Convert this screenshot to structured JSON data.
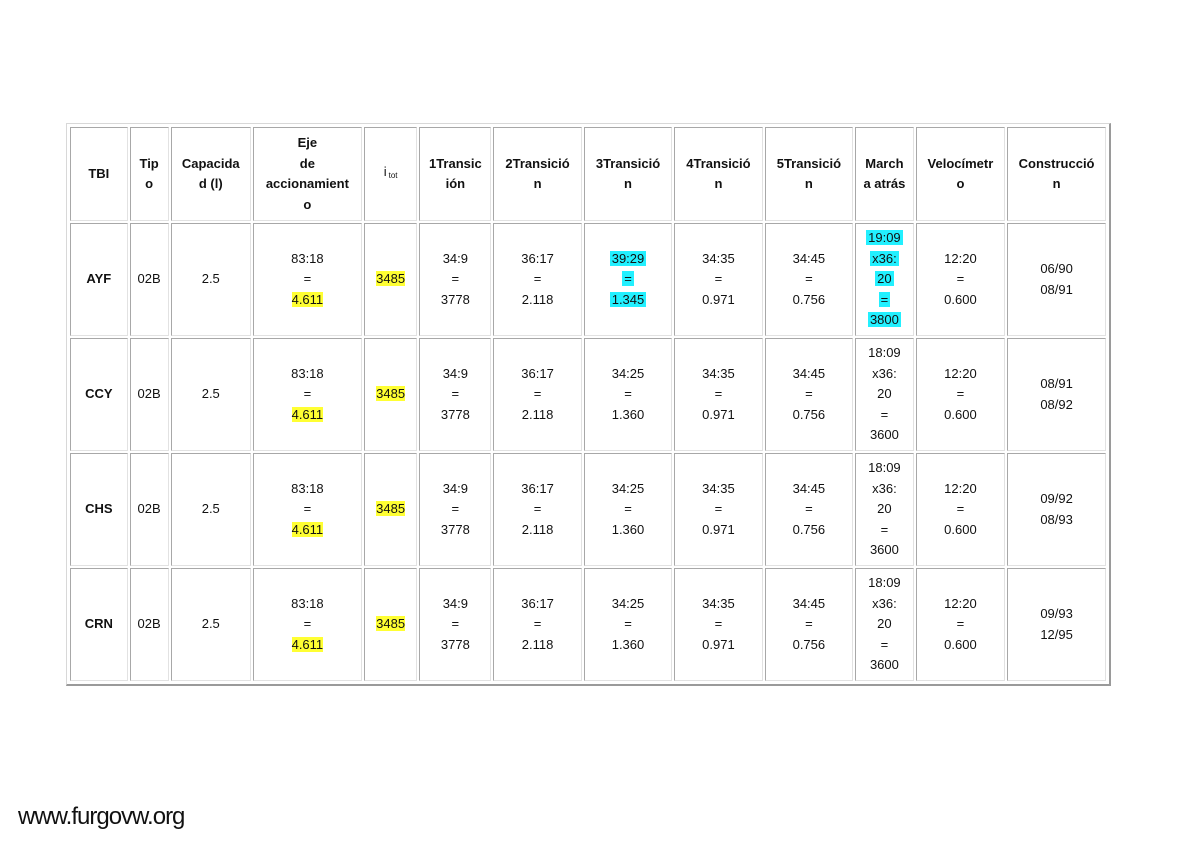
{
  "headers": [
    [
      "TBI"
    ],
    [
      "Tip",
      "o"
    ],
    [
      "Capacida",
      "d (l)"
    ],
    [
      "Eje",
      "de",
      "accionamient",
      "o"
    ],
    [
      "i"
    ],
    [
      "1Transic",
      "ión"
    ],
    [
      "2Transició",
      "n"
    ],
    [
      "3Transició",
      "n"
    ],
    [
      "4Transició",
      "n"
    ],
    [
      "5Transició",
      "n"
    ],
    [
      "March",
      "a atrás"
    ],
    [
      "Velocímetr",
      "o"
    ],
    [
      "Construcció",
      "n"
    ]
  ],
  "header_i_sub": "tot",
  "rows": [
    {
      "code": "AYF",
      "tipo": "02B",
      "capacidad": "2.5",
      "eje": [
        "83:18",
        "=",
        "4.611"
      ],
      "itot": "3485",
      "t1": [
        "34:9",
        "=",
        "3778"
      ],
      "t2": [
        "36:17",
        "=",
        "2.118"
      ],
      "t3": [
        "39:29",
        "=",
        "1.345"
      ],
      "t4": [
        "34:35",
        "=",
        "0.971"
      ],
      "t5": [
        "34:45",
        "=",
        "0.756"
      ],
      "marcha": [
        "19:09",
        "x36:",
        "20",
        "=",
        "3800"
      ],
      "velocimetro": [
        "12:20",
        "=",
        "0.600"
      ],
      "construccion": [
        "06/90",
        "08/91"
      ]
    },
    {
      "code": "CCY",
      "tipo": "02B",
      "capacidad": "2.5",
      "eje": [
        "83:18",
        "=",
        "4.611"
      ],
      "itot": "3485",
      "t1": [
        "34:9",
        "=",
        "3778"
      ],
      "t2": [
        "36:17",
        "=",
        "2.118"
      ],
      "t3": [
        "34:25",
        "=",
        "1.360"
      ],
      "t4": [
        "34:35",
        "=",
        "0.971"
      ],
      "t5": [
        "34:45",
        "=",
        "0.756"
      ],
      "marcha": [
        "18:09",
        "x36:",
        "20",
        "=",
        "3600"
      ],
      "velocimetro": [
        "12:20",
        "=",
        "0.600"
      ],
      "construccion": [
        "08/91",
        "08/92"
      ]
    },
    {
      "code": "CHS",
      "tipo": "02B",
      "capacidad": "2.5",
      "eje": [
        "83:18",
        "=",
        "4.611"
      ],
      "itot": "3485",
      "t1": [
        "34:9",
        "=",
        "3778"
      ],
      "t2": [
        "36:17",
        "=",
        "2.118"
      ],
      "t3": [
        "34:25",
        "=",
        "1.360"
      ],
      "t4": [
        "34:35",
        "=",
        "0.971"
      ],
      "t5": [
        "34:45",
        "=",
        "0.756"
      ],
      "marcha": [
        "18:09",
        "x36:",
        "20",
        "=",
        "3600"
      ],
      "velocimetro": [
        "12:20",
        "=",
        "0.600"
      ],
      "construccion": [
        "09/92",
        "08/93"
      ]
    },
    {
      "code": "CRN",
      "tipo": "02B",
      "capacidad": "2.5",
      "eje": [
        "83:18",
        "=",
        "4.611"
      ],
      "itot": "3485",
      "t1": [
        "34:9",
        "=",
        "3778"
      ],
      "t2": [
        "36:17",
        "=",
        "2.118"
      ],
      "t3": [
        "34:25",
        "=",
        "1.360"
      ],
      "t4": [
        "34:35",
        "=",
        "0.971"
      ],
      "t5": [
        "34:45",
        "=",
        "0.756"
      ],
      "marcha": [
        "18:09",
        "x36:",
        "20",
        "=",
        "3600"
      ],
      "velocimetro": [
        "12:20",
        "=",
        "0.600"
      ],
      "construccion": [
        "09/93",
        "12/95"
      ]
    }
  ],
  "highlight_colors": {
    "yellow": "#ffff33",
    "cyan": "#22f0ff"
  },
  "footer": "www.furgovw.org"
}
